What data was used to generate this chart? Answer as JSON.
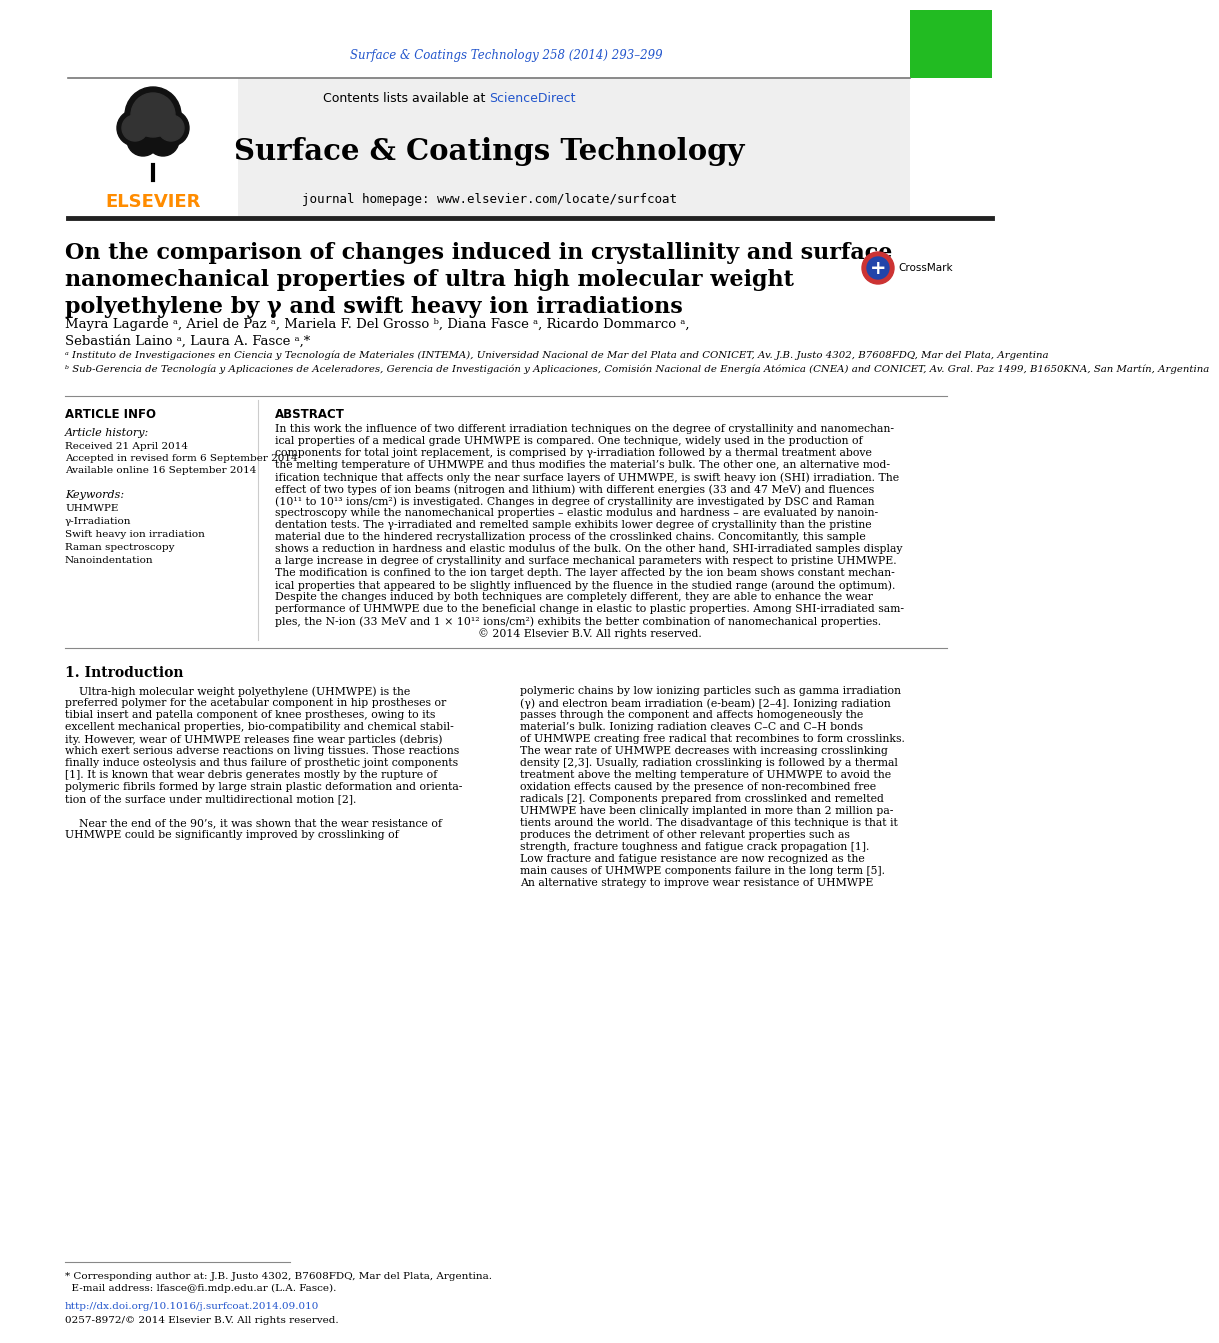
{
  "journal_ref": "Surface & Coatings Technology 258 (2014) 293–299",
  "contents_line": "Contents lists available at ScienceDirect",
  "sciencedirect_color": "#2255cc",
  "journal_name": "Surface & Coatings Technology",
  "journal_homepage": "journal homepage: www.elsevier.com/locate/surfcoat",
  "elsevier_color": "#FF8C00",
  "header_bg": "#f0f0f0",
  "title_line1": "On the comparison of changes induced in crystallinity and surface",
  "title_line2": "nanomechanical properties of ultra high molecular weight",
  "title_line3": "polyethylene by γ and swift heavy ion irradiations",
  "authors": "Mayra Lagarde ᵃ, Ariel de Paz ᵃ, Mariela F. Del Grosso ᵇ, Diana Fasce ᵃ, Ricardo Dommarco ᵃ,",
  "authors2": "Sebastián Laino ᵃ, Laura A. Fasce ᵃ,*",
  "affil_a": "ᵃ Instituto de Investigaciones en Ciencia y Tecnología de Materiales (INTEMA), Universidad Nacional de Mar del Plata and CONICET, Av. J.B. Justo 4302, B7608FDQ, Mar del Plata, Argentina",
  "affil_b": "ᵇ Sub-Gerencia de Tecnología y Aplicaciones de Aceleradores, Gerencia de Investigación y Aplicaciones, Comisión Nacional de Energía Atómica (CNEA) and CONICET, Av. Gral. Paz 1499, B1650KNA, San Martín, Argentina",
  "article_info_header": "ARTICLE INFO",
  "article_history_header": "Article history:",
  "received": "Received 21 April 2014",
  "accepted": "Accepted in revised form 6 September 2014",
  "available": "Available online 16 September 2014",
  "keywords_header": "Keywords:",
  "kw1": "UHMWPE",
  "kw2": "γ-Irradiation",
  "kw3": "Swift heavy ion irradiation",
  "kw4": "Raman spectroscopy",
  "kw5": "Nanoindentation",
  "abstract_header": "ABSTRACT",
  "section1_header": "1. Introduction",
  "doi_text": "http://dx.doi.org/10.1016/j.surfcoat.2014.09.010",
  "issn_text": "0257-8972/© 2014 Elsevier B.V. All rights reserved.",
  "footnote_line1": "* Corresponding author at: J.B. Justo 4302, B7608FDQ, Mar del Plata, Argentina.",
  "footnote_line2": "  E-mail address: lfasce@fi.mdp.edu.ar (L.A. Fasce).",
  "bg_color": "#ffffff",
  "text_color": "#000000",
  "link_color": "#2255cc",
  "abstract_lines": [
    "In this work the influence of two different irradiation techniques on the degree of crystallinity and nanomechan-",
    "ical properties of a medical grade UHMWPE is compared. One technique, widely used in the production of",
    "components for total joint replacement, is comprised by γ-irradiation followed by a thermal treatment above",
    "the melting temperature of UHMWPE and thus modifies the material’s bulk. The other one, an alternative mod-",
    "ification technique that affects only the near surface layers of UHMWPE, is swift heavy ion (SHI) irradiation. The",
    "effect of two types of ion beams (nitrogen and lithium) with different energies (33 and 47 MeV) and fluences",
    "(10¹¹ to 10¹³ ions/cm²) is investigated. Changes in degree of crystallinity are investigated by DSC and Raman",
    "spectroscopy while the nanomechanical properties – elastic modulus and hardness – are evaluated by nanoin-",
    "dentation tests. The γ-irradiated and remelted sample exhibits lower degree of crystallinity than the pristine",
    "material due to the hindered recrystallization process of the crosslinked chains. Concomitantly, this sample",
    "shows a reduction in hardness and elastic modulus of the bulk. On the other hand, SHI-irradiated samples display",
    "a large increase in degree of crystallinity and surface mechanical parameters with respect to pristine UHMWPE.",
    "The modification is confined to the ion target depth. The layer affected by the ion beam shows constant mechan-",
    "ical properties that appeared to be slightly influenced by the fluence in the studied range (around the optimum).",
    "Despite the changes induced by both techniques are completely different, they are able to enhance the wear",
    "performance of UHMWPE due to the beneficial change in elastic to plastic properties. Among SHI-irradiated sam-",
    "ples, the N-ion (33 MeV and 1 × 10¹² ions/cm²) exhibits the better combination of nanomechanical properties.",
    "                                                          © 2014 Elsevier B.V. All rights reserved."
  ],
  "intro_col1_lines": [
    "    Ultra-high molecular weight polyethylene (UHMWPE) is the",
    "preferred polymer for the acetabular component in hip prostheses or",
    "tibial insert and patella component of knee prostheses, owing to its",
    "excellent mechanical properties, bio-compatibility and chemical stabil-",
    "ity. However, wear of UHMWPE releases fine wear particles (debris)",
    "which exert serious adverse reactions on living tissues. Those reactions",
    "finally induce osteolysis and thus failure of prosthetic joint components",
    "[1]. It is known that wear debris generates mostly by the rupture of",
    "polymeric fibrils formed by large strain plastic deformation and orienta-",
    "tion of the surface under multidirectional motion [2].",
    "",
    "    Near the end of the 90’s, it was shown that the wear resistance of",
    "UHMWPE could be significantly improved by crosslinking of"
  ],
  "intro_col2_lines": [
    "polymeric chains by low ionizing particles such as gamma irradiation",
    "(γ) and electron beam irradiation (e-beam) [2–4]. Ionizing radiation",
    "passes through the component and affects homogeneously the",
    "material’s bulk. Ionizing radiation cleaves C–C and C–H bonds",
    "of UHMWPE creating free radical that recombines to form crosslinks.",
    "The wear rate of UHMWPE decreases with increasing crosslinking",
    "density [2,3]. Usually, radiation crosslinking is followed by a thermal",
    "treatment above the melting temperature of UHMWPE to avoid the",
    "oxidation effects caused by the presence of non-recombined free",
    "radicals [2]. Components prepared from crosslinked and remelted",
    "UHMWPE have been clinically implanted in more than 2 million pa-",
    "tients around the world. The disadvantage of this technique is that it",
    "produces the detriment of other relevant properties such as",
    "strength, fracture toughness and fatigue crack propagation [1].",
    "Low fracture and fatigue resistance are now recognized as the",
    "main causes of UHMWPE components failure in the long term [5].",
    "An alternative strategy to improve wear resistance of UHMWPE"
  ]
}
